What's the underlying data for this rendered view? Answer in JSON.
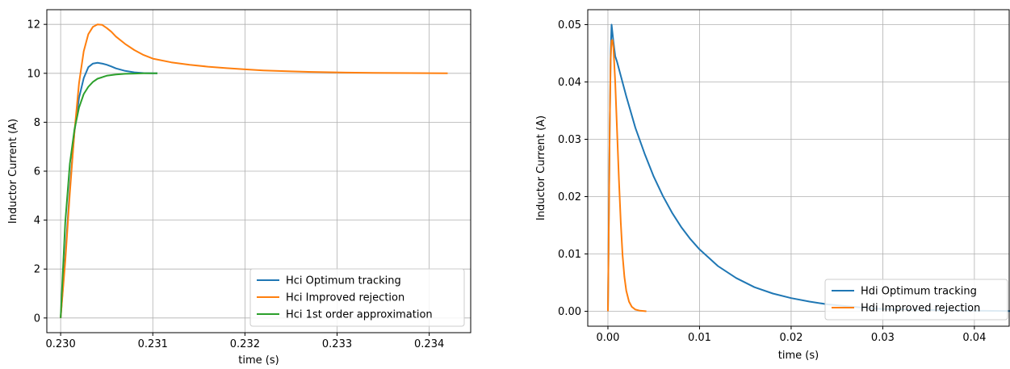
{
  "chart_data": [
    {
      "type": "line",
      "xlabel": "time (s)",
      "ylabel": "Inductor Current (A)",
      "xlim": [
        0.22985,
        0.23445
      ],
      "ylim": [
        -0.6,
        12.6
      ],
      "xticks": [
        "0.230",
        "0.231",
        "0.232",
        "0.233",
        "0.234"
      ],
      "yticks": [
        "0",
        "2",
        "4",
        "6",
        "8",
        "10",
        "12"
      ],
      "grid": true,
      "legend_position": "lower-right",
      "series": [
        {
          "name": "Hci Optimum tracking",
          "color": "#1f77b4",
          "x": [
            0.23,
            0.23005,
            0.2301,
            0.23015,
            0.2302,
            0.23025,
            0.2303,
            0.23035,
            0.2304,
            0.23045,
            0.2305,
            0.23055,
            0.2306,
            0.2307,
            0.2308,
            0.2309,
            0.231,
            0.23105
          ],
          "y": [
            0,
            2.5,
            5.3,
            7.6,
            9.0,
            9.8,
            10.25,
            10.4,
            10.43,
            10.4,
            10.35,
            10.28,
            10.2,
            10.1,
            10.04,
            10.01,
            10.0,
            10.0
          ]
        },
        {
          "name": "Hci Improved rejection",
          "color": "#ff7f0e",
          "x": [
            0.23,
            0.23005,
            0.2301,
            0.23015,
            0.2302,
            0.23025,
            0.2303,
            0.23035,
            0.2304,
            0.23045,
            0.2305,
            0.23055,
            0.2306,
            0.2307,
            0.2308,
            0.2309,
            0.231,
            0.2312,
            0.2314,
            0.2316,
            0.2318,
            0.232,
            0.2322,
            0.2325,
            0.2328,
            0.2331,
            0.2334,
            0.2342
          ],
          "y": [
            0,
            2.3,
            5.1,
            7.6,
            9.6,
            10.9,
            11.6,
            11.9,
            12.0,
            11.98,
            11.85,
            11.7,
            11.5,
            11.2,
            10.95,
            10.75,
            10.6,
            10.45,
            10.35,
            10.27,
            10.21,
            10.16,
            10.12,
            10.08,
            10.05,
            10.03,
            10.02,
            10.0
          ]
        },
        {
          "name": "Hci 1st order approximation",
          "color": "#2ca02c",
          "x": [
            0.23,
            0.23005,
            0.2301,
            0.23015,
            0.2302,
            0.23025,
            0.2303,
            0.23035,
            0.2304,
            0.2305,
            0.2306,
            0.2307,
            0.2308,
            0.2309,
            0.231,
            0.23105
          ],
          "y": [
            0,
            3.9,
            6.3,
            7.7,
            8.6,
            9.15,
            9.45,
            9.65,
            9.78,
            9.9,
            9.95,
            9.98,
            9.99,
            10.0,
            10.0,
            10.0
          ]
        }
      ]
    },
    {
      "type": "line",
      "xlabel": "time (s)",
      "ylabel": "Inductor Current (A)",
      "xlim": [
        -0.0022,
        0.0438
      ],
      "ylim": [
        -0.0026,
        0.0526
      ],
      "xticks": [
        "0.00",
        "0.01",
        "0.02",
        "0.03",
        "0.04"
      ],
      "yticks": [
        "0.00",
        "0.01",
        "0.02",
        "0.03",
        "0.04",
        "0.05"
      ],
      "grid": true,
      "legend_position": "lower-right",
      "series": [
        {
          "name": "Hdi Optimum tracking",
          "color": "#1f77b4",
          "x": [
            0,
            0.0001,
            0.0002,
            0.0003,
            0.0004,
            0.0006,
            0.0008,
            0.001,
            0.002,
            0.003,
            0.004,
            0.005,
            0.006,
            0.007,
            0.008,
            0.009,
            0.01,
            0.012,
            0.014,
            0.016,
            0.018,
            0.02,
            0.022,
            0.024,
            0.026,
            0.028,
            0.03,
            0.033,
            0.036,
            0.04,
            0.044
          ],
          "y": [
            0,
            0.016,
            0.032,
            0.045,
            0.05,
            0.047,
            0.0445,
            0.0435,
            0.0375,
            0.032,
            0.0275,
            0.0235,
            0.0201,
            0.0172,
            0.0147,
            0.0126,
            0.0108,
            0.0079,
            0.0058,
            0.0042,
            0.0031,
            0.0023,
            0.0017,
            0.0012,
            0.0009,
            0.0006,
            0.0004,
            0.0003,
            0.0002,
            0.0001,
            5e-05
          ]
        },
        {
          "name": "Hdi Improved rejection",
          "color": "#ff7f0e",
          "x": [
            0,
            0.0001,
            0.0002,
            0.0003,
            0.0004,
            0.0005,
            0.0006,
            0.0008,
            0.001,
            0.0012,
            0.0014,
            0.0016,
            0.0018,
            0.002,
            0.0023,
            0.0026,
            0.003,
            0.0035,
            0.0042
          ],
          "y": [
            0,
            0.015,
            0.032,
            0.044,
            0.0472,
            0.0473,
            0.046,
            0.04,
            0.0315,
            0.023,
            0.0155,
            0.0098,
            0.006,
            0.0036,
            0.0017,
            0.0008,
            0.0003,
            0.0001,
            0.0
          ]
        }
      ]
    }
  ]
}
